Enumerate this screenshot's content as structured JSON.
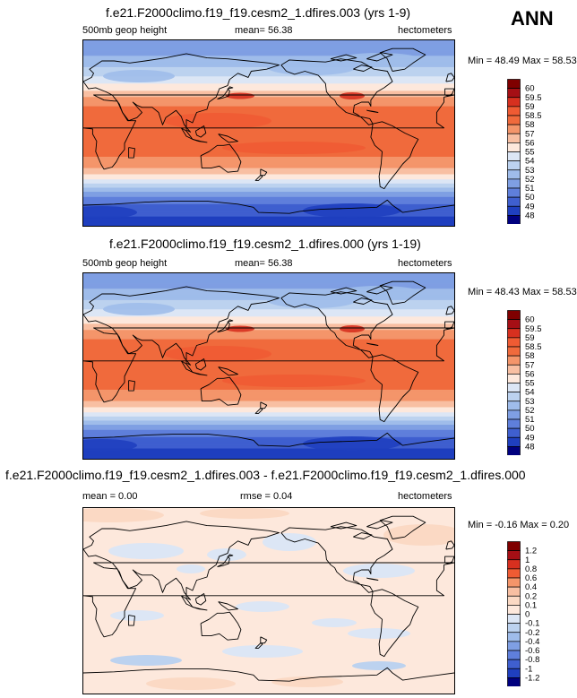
{
  "season": "ANN",
  "panels": [
    {
      "title": "f.e21.F2000climo.f19_f19.cesm2_1.dfires.003 (yrs 1-9)",
      "left_label": "500mb geop height",
      "center_label": "mean=  56.38",
      "right_label": "hectometers",
      "range_label": "Min =  48.49 Max =  58.53",
      "colorbar_labels": [
        "60",
        "59.5",
        "59",
        "58.5",
        "58",
        "57",
        "56",
        "55",
        "54",
        "53",
        "52",
        "51",
        "50",
        "49",
        "48"
      ]
    },
    {
      "title": "f.e21.F2000climo.f19_f19.cesm2_1.dfires.000 (yrs 1-19)",
      "left_label": "500mb geop height",
      "center_label": "mean=  56.38",
      "right_label": "hectometers",
      "range_label": "Min =  48.43 Max =  58.53",
      "colorbar_labels": [
        "60",
        "59.5",
        "59",
        "58.5",
        "58",
        "57",
        "56",
        "55",
        "54",
        "53",
        "52",
        "51",
        "50",
        "49",
        "48"
      ]
    },
    {
      "title": "f.e21.F2000climo.f19_f19.cesm2_1.dfires.003 - f.e21.F2000climo.f19_f19.cesm2_1.dfires.000",
      "left_label": "mean =   0.00",
      "center_label": "rmse =  0.04",
      "right_label": "hectometers",
      "range_label": "Min =  -0.16 Max =   0.20",
      "colorbar_labels": [
        "1.2",
        "1",
        "0.8",
        "0.6",
        "0.4",
        "0.2",
        "0.1",
        "0",
        "-0.1",
        "-0.2",
        "-0.4",
        "-0.6",
        "-0.8",
        "-1",
        "-1.2"
      ]
    }
  ],
  "colors": {
    "abs_scale": [
      "#7f0000",
      "#a50f15",
      "#d7301f",
      "#ef5b33",
      "#f06a3c",
      "#f4956a",
      "#f8bfa2",
      "#fde8dc",
      "#dce6f5",
      "#bcd2ef",
      "#9fbcea",
      "#7f9fe3",
      "#5f7fdb",
      "#3f5fcf",
      "#1f3fbf",
      "#00007f"
    ],
    "diff_scale": [
      "#7f0000",
      "#a50f15",
      "#d7301f",
      "#ef5b33",
      "#f4956a",
      "#f8bfa2",
      "#fbd9c4",
      "#fde8dc",
      "#dce6f5",
      "#bcd2ef",
      "#9fbcea",
      "#7f9fe3",
      "#5f7fdb",
      "#3f5fcf",
      "#1f3fbf",
      "#00007f"
    ]
  },
  "chart_data": [
    {
      "type": "heatmap",
      "title": "f.e21.F2000climo.f19_f19.cesm2_1.dfires.003 (yrs 1-9)",
      "variable": "500mb geop height",
      "units": "hectometers",
      "mean": 56.38,
      "min": 48.49,
      "max": 58.53,
      "levels": [
        48,
        49,
        50,
        51,
        52,
        53,
        54,
        55,
        56,
        57,
        58,
        58.5,
        59,
        59.5,
        60
      ],
      "zonal_profile": {
        "lat": [
          90,
          75,
          60,
          50,
          40,
          30,
          15,
          0,
          -15,
          -30,
          -40,
          -50,
          -60,
          -75,
          -90
        ],
        "value": [
          51.2,
          52.0,
          53.4,
          54.6,
          56.2,
          57.9,
          58.3,
          58.4,
          58.3,
          57.7,
          56.0,
          53.8,
          51.2,
          49.2,
          48.7
        ]
      }
    },
    {
      "type": "heatmap",
      "title": "f.e21.F2000climo.f19_f19.cesm2_1.dfires.000 (yrs 1-19)",
      "variable": "500mb geop height",
      "units": "hectometers",
      "mean": 56.38,
      "min": 48.43,
      "max": 58.53,
      "levels": [
        48,
        49,
        50,
        51,
        52,
        53,
        54,
        55,
        56,
        57,
        58,
        58.5,
        59,
        59.5,
        60
      ],
      "zonal_profile": {
        "lat": [
          90,
          75,
          60,
          50,
          40,
          30,
          15,
          0,
          -15,
          -30,
          -40,
          -50,
          -60,
          -75,
          -90
        ],
        "value": [
          51.2,
          52.0,
          53.4,
          54.6,
          56.2,
          57.9,
          58.3,
          58.4,
          58.3,
          57.7,
          56.0,
          53.8,
          51.2,
          49.2,
          48.6
        ]
      }
    },
    {
      "type": "heatmap",
      "title": "f.e21.F2000climo.f19_f19.cesm2_1.dfires.003 - f.e21.F2000climo.f19_f19.cesm2_1.dfires.000",
      "units": "hectometers",
      "mean": 0.0,
      "rmse": 0.04,
      "min": -0.16,
      "max": 0.2,
      "levels": [
        -1.2,
        -1,
        -0.8,
        -0.6,
        -0.4,
        -0.2,
        -0.1,
        0,
        0.1,
        0.2,
        0.4,
        0.6,
        0.8,
        1,
        1.2
      ]
    }
  ]
}
